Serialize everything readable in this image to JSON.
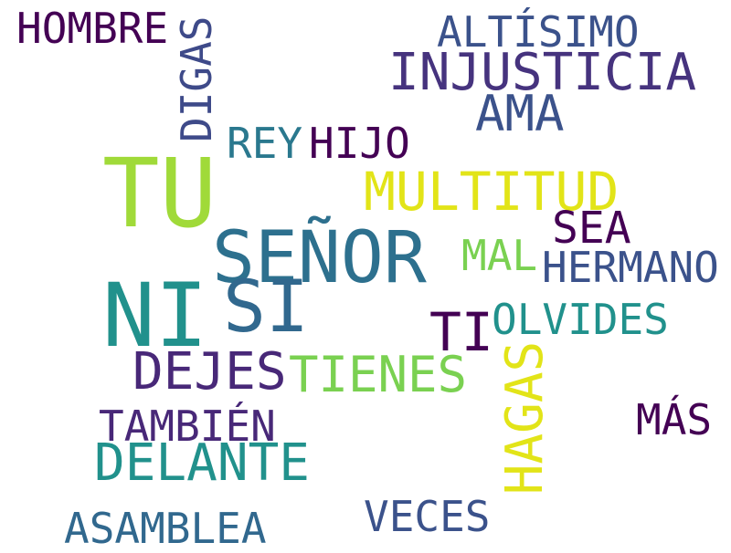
{
  "word_cloud": {
    "words": [
      {
        "text": "HOMBRE",
        "color": "#440154"
      },
      {
        "text": "ALTÍSIMO",
        "color": "#3b528b"
      },
      {
        "text": "INJUSTICIA",
        "color": "#46337e"
      },
      {
        "text": "AMA",
        "color": "#3b528b"
      },
      {
        "text": "DIGAS",
        "color": "#3e4a89"
      },
      {
        "text": "REY",
        "color": "#2a788e"
      },
      {
        "text": "HIJO",
        "color": "#440154"
      },
      {
        "text": "TU",
        "color": "#a0da39"
      },
      {
        "text": "MULTITUD",
        "color": "#e2e418"
      },
      {
        "text": "SEA",
        "color": "#440154"
      },
      {
        "text": "SEÑOR",
        "color": "#2d708e"
      },
      {
        "text": "MAL",
        "color": "#7ad151"
      },
      {
        "text": "HERMANO",
        "color": "#3b528b"
      },
      {
        "text": "NI",
        "color": "#21918c"
      },
      {
        "text": "SI",
        "color": "#31688e"
      },
      {
        "text": "OLVIDES",
        "color": "#21918c"
      },
      {
        "text": "TI",
        "color": "#440154"
      },
      {
        "text": "DEJES",
        "color": "#482878"
      },
      {
        "text": "TIENES",
        "color": "#7ad151"
      },
      {
        "text": "HAGAS",
        "color": "#e2e418"
      },
      {
        "text": "TAMBIÉN",
        "color": "#482878"
      },
      {
        "text": "MÁS",
        "color": "#440154"
      },
      {
        "text": "DELANTE",
        "color": "#21918c"
      },
      {
        "text": "VECES",
        "color": "#3b528b"
      },
      {
        "text": "ASAMBLEA",
        "color": "#31688e"
      }
    ]
  }
}
